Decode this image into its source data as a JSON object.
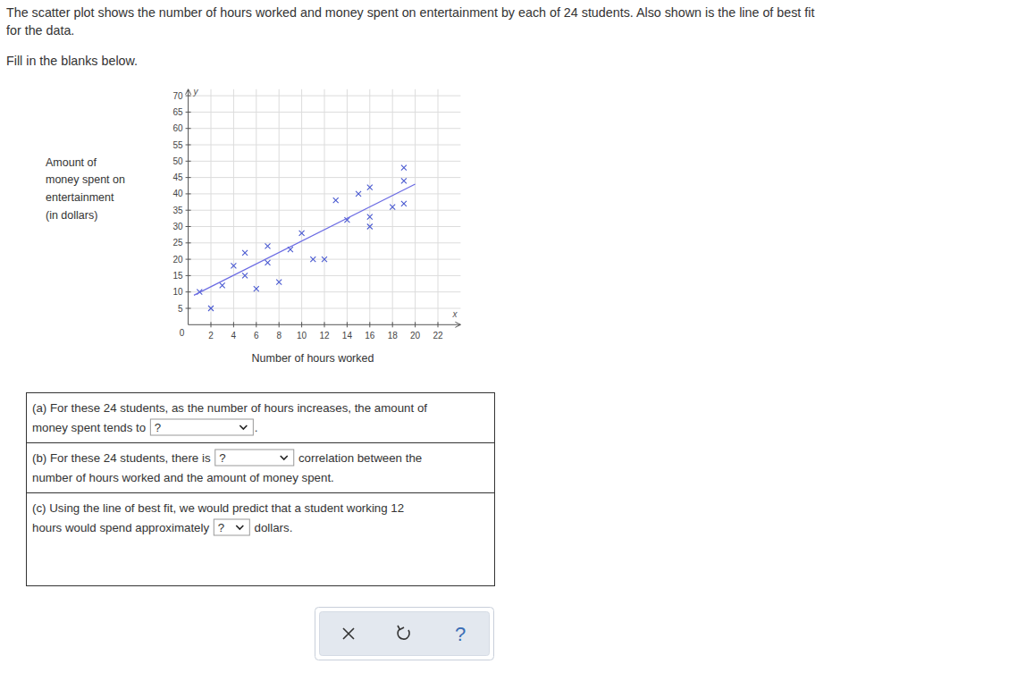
{
  "header": {
    "lines": [
      "The scatter plot shows the number of hours worked and money spent on entertainment by each of 24 students. Also shown is the line of best fit",
      "for the data."
    ],
    "instruction": "Fill in the blanks below."
  },
  "chart_data": {
    "type": "scatter",
    "x_label": "Number of hours worked",
    "y_label": [
      "Amount of",
      "money spent on",
      "entertainment",
      "(in dollars)"
    ],
    "x_symbol": "x",
    "y_symbol": "y",
    "series": [
      {
        "type": "scatter",
        "marker": "x",
        "color": "#4a5ad0",
        "x": [
          1,
          2,
          3,
          4,
          5,
          5,
          6,
          7,
          7,
          8,
          9,
          10,
          11,
          12,
          13,
          14,
          15,
          16,
          16,
          16,
          18,
          19,
          19,
          19
        ],
        "values": [
          10,
          5,
          12,
          18,
          22,
          15,
          11,
          24,
          19,
          13,
          23,
          28,
          20,
          20,
          38,
          32,
          40,
          42,
          33,
          30,
          36,
          37,
          48,
          44
        ]
      },
      {
        "type": "line",
        "line_style": "solid",
        "color": "#6b6be3",
        "x": [
          0.5,
          20
        ],
        "values": [
          9,
          43
        ]
      }
    ],
    "xlim": [
      0,
      24
    ],
    "ylim": [
      0,
      72
    ],
    "xticks": [
      0,
      2,
      4,
      6,
      8,
      10,
      12,
      14,
      16,
      18,
      20,
      22
    ],
    "yticks": [
      5,
      10,
      15,
      20,
      25,
      30,
      35,
      40,
      45,
      50,
      55,
      60,
      65,
      70
    ],
    "grid": true
  },
  "questions": [
    {
      "lines": [
        [
          "(a) For these 24 students, as the number of hours increases, the amount of"
        ],
        [
          "money spent tends to ",
          {
            "select": "?"
          },
          "."
        ]
      ]
    },
    {
      "lines": [
        [
          "(b) For these 24 students, there is ",
          {
            "select": "?"
          },
          " correlation between the"
        ],
        [
          "number of hours worked and the amount of money spent."
        ]
      ]
    },
    {
      "lines": [
        [
          "(c) Using the line of best fit, we would predict that a student working 12"
        ],
        [
          "hours would spend approximately ",
          {
            "select": "?"
          },
          " dollars."
        ]
      ]
    }
  ],
  "buttons": {
    "help": "?"
  }
}
